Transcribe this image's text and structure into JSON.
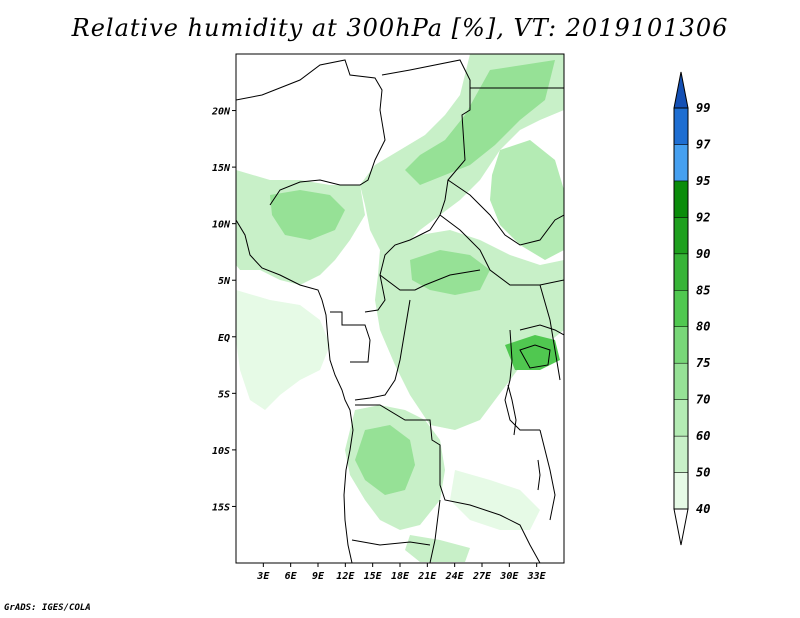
{
  "title": "Relative humidity at 300hPa [%], VT: 2019101306",
  "credit": "GrADS: IGES/COLA",
  "map": {
    "lon_range": [
      0,
      36
    ],
    "lat_range": [
      -20,
      25
    ],
    "lat_ticks": [
      {
        "value": 20,
        "label": "20N"
      },
      {
        "value": 15,
        "label": "15N"
      },
      {
        "value": 10,
        "label": "10N"
      },
      {
        "value": 5,
        "label": "5N"
      },
      {
        "value": 0,
        "label": "EQ"
      },
      {
        "value": -5,
        "label": "5S"
      },
      {
        "value": -10,
        "label": "10S"
      },
      {
        "value": -15,
        "label": "15S"
      }
    ],
    "lon_ticks": [
      {
        "value": 3,
        "label": "3E"
      },
      {
        "value": 6,
        "label": "6E"
      },
      {
        "value": 9,
        "label": "9E"
      },
      {
        "value": 12,
        "label": "12E"
      },
      {
        "value": 15,
        "label": "15E"
      },
      {
        "value": 18,
        "label": "18E"
      },
      {
        "value": 21,
        "label": "21E"
      },
      {
        "value": 24,
        "label": "24E"
      },
      {
        "value": 27,
        "label": "27E"
      },
      {
        "value": 30,
        "label": "30E"
      },
      {
        "value": 33,
        "label": "33E"
      }
    ]
  },
  "colorbar": {
    "labels": [
      "40",
      "50",
      "60",
      "70",
      "75",
      "80",
      "85",
      "90",
      "92",
      "95",
      "97",
      "99"
    ],
    "colors": [
      "#ffffff",
      "#e6fae6",
      "#c8f0c8",
      "#b4ebb4",
      "#96e196",
      "#78d778",
      "#50c850",
      "#37b437",
      "#1ea01e",
      "#0a8c0a",
      "#46a0f0",
      "#1e6ed2",
      "#1450b4"
    ]
  }
}
